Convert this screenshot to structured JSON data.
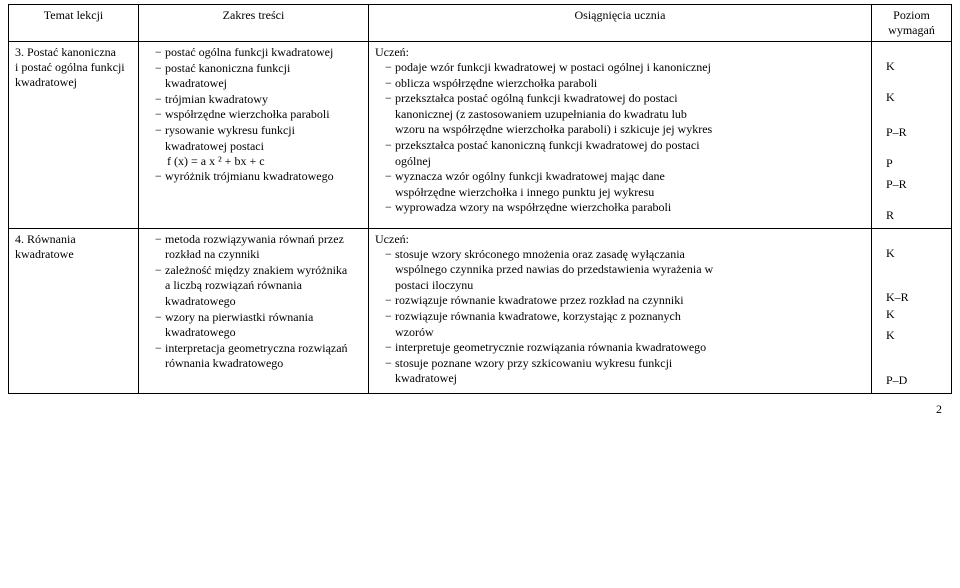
{
  "headers": {
    "c1": "Temat lekcji",
    "c2": "Zakres treści",
    "c3": "Osiągnięcia ucznia",
    "c4_line1": "Poziom",
    "c4_line2": "wymagań"
  },
  "row1": {
    "topic_l1": "3. Postać kanoniczna",
    "topic_l2": "i postać ogólna funkcji",
    "topic_l3": "kwadratowej",
    "scope": {
      "i1": "postać ogólna funkcji kwadratowej",
      "i2a": "postać kanoniczna funkcji",
      "i2b": "kwadratowej",
      "i3": "trójmian kwadratowy",
      "i4": "współrzędne wierzchołka paraboli",
      "i5a": "rysowanie wykresu funkcji",
      "i5b": "kwadratowej postaci",
      "i5c": "f (x) = a x ² + bx + c",
      "i6": "wyróżnik trójmianu kwadratowego"
    },
    "ach_label": "Uczeń:",
    "ach": {
      "a1": "podaje wzór funkcji kwadratowej w postaci ogólnej i kanonicznej",
      "a2": "oblicza współrzędne wierzchołka paraboli",
      "a3a": "przekształca postać ogólną funkcji kwadratowej do postaci",
      "a3b": "kanonicznej (z zastosowaniem uzupełniania do kwadratu lub",
      "a3c": "wzoru na współrzędne wierzchołka paraboli) i szkicuje jej wykres",
      "a4a": "przekształca postać kanoniczną funkcji kwadratowej do postaci",
      "a4b": "ogólnej",
      "a5a": "wyznacza wzór ogólny funkcji kwadratowej mając dane",
      "a5b": "współrzędne wierzchołka i innego punktu jej wykresu",
      "a6": "wyprowadza wzory na współrzędne wierzchołka paraboli"
    },
    "levels": {
      "l1": "K",
      "l2": "K",
      "l3": "P–R",
      "l4": "P",
      "l5": "P–R",
      "l6": "R"
    }
  },
  "row2": {
    "topic": "4. Równania kwadratowe",
    "scope": {
      "i1a": "metoda rozwiązywania równań przez",
      "i1b": "rozkład na czynniki",
      "i2a": "zależność między znakiem wyróżnika",
      "i2b": "a liczbą rozwiązań równania",
      "i2c": "kwadratowego",
      "i3a": "wzory na pierwiastki równania",
      "i3b": "kwadratowego",
      "i4a": "interpretacja geometryczna rozwiązań",
      "i4b": "równania kwadratowego"
    },
    "ach_label": "Uczeń:",
    "ach": {
      "a1a": "stosuje wzory skróconego mnożenia oraz zasadę wyłączania",
      "a1b": "wspólnego czynnika przed nawias do przedstawienia wyrażenia w",
      "a1c": "postaci iloczynu",
      "a2": "rozwiązuje równanie kwadratowe przez rozkład na czynniki",
      "a3a": "rozwiązuje równania kwadratowe, korzystając z poznanych",
      "a3b": "wzorów",
      "a4": "interpretuje geometrycznie rozwiązania równania kwadratowego",
      "a5a": "stosuje poznane wzory przy szkicowaniu wykresu funkcji",
      "a5b": "kwadratowej"
    },
    "levels": {
      "l1": "K",
      "l2": "K–R",
      "l3": "K",
      "l4": "K",
      "l5": "P–D"
    }
  },
  "pagenum": "2"
}
